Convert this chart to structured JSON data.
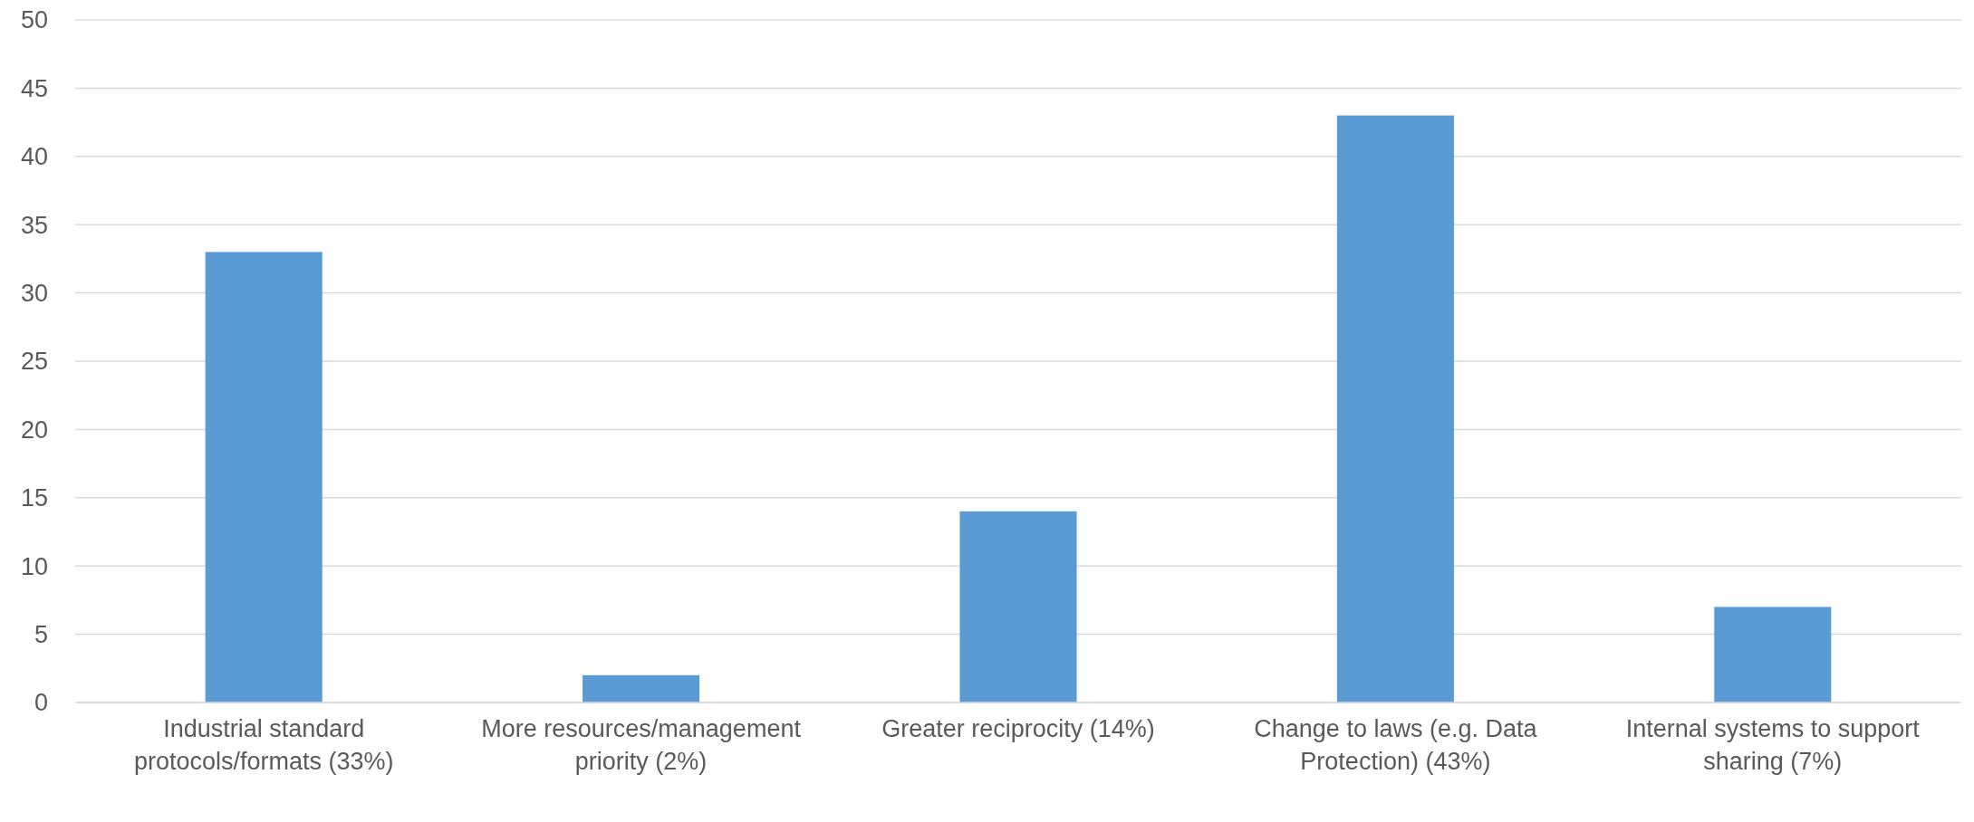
{
  "chart_data": {
    "type": "bar",
    "categories": [
      "Industrial standard protocols/formats (33%)",
      "More resources/management priority (2%)",
      "Greater reciprocity (14%)",
      "Change to laws (e.g. Data Protection) (43%)",
      "Internal systems to support sharing (7%)"
    ],
    "values": [
      33,
      2,
      14,
      43,
      7
    ],
    "color": "#5b9bd5",
    "ylim": [
      0,
      50
    ],
    "yticks": [
      0,
      5,
      10,
      15,
      20,
      25,
      30,
      35,
      40,
      45,
      50
    ],
    "grid": "y"
  }
}
